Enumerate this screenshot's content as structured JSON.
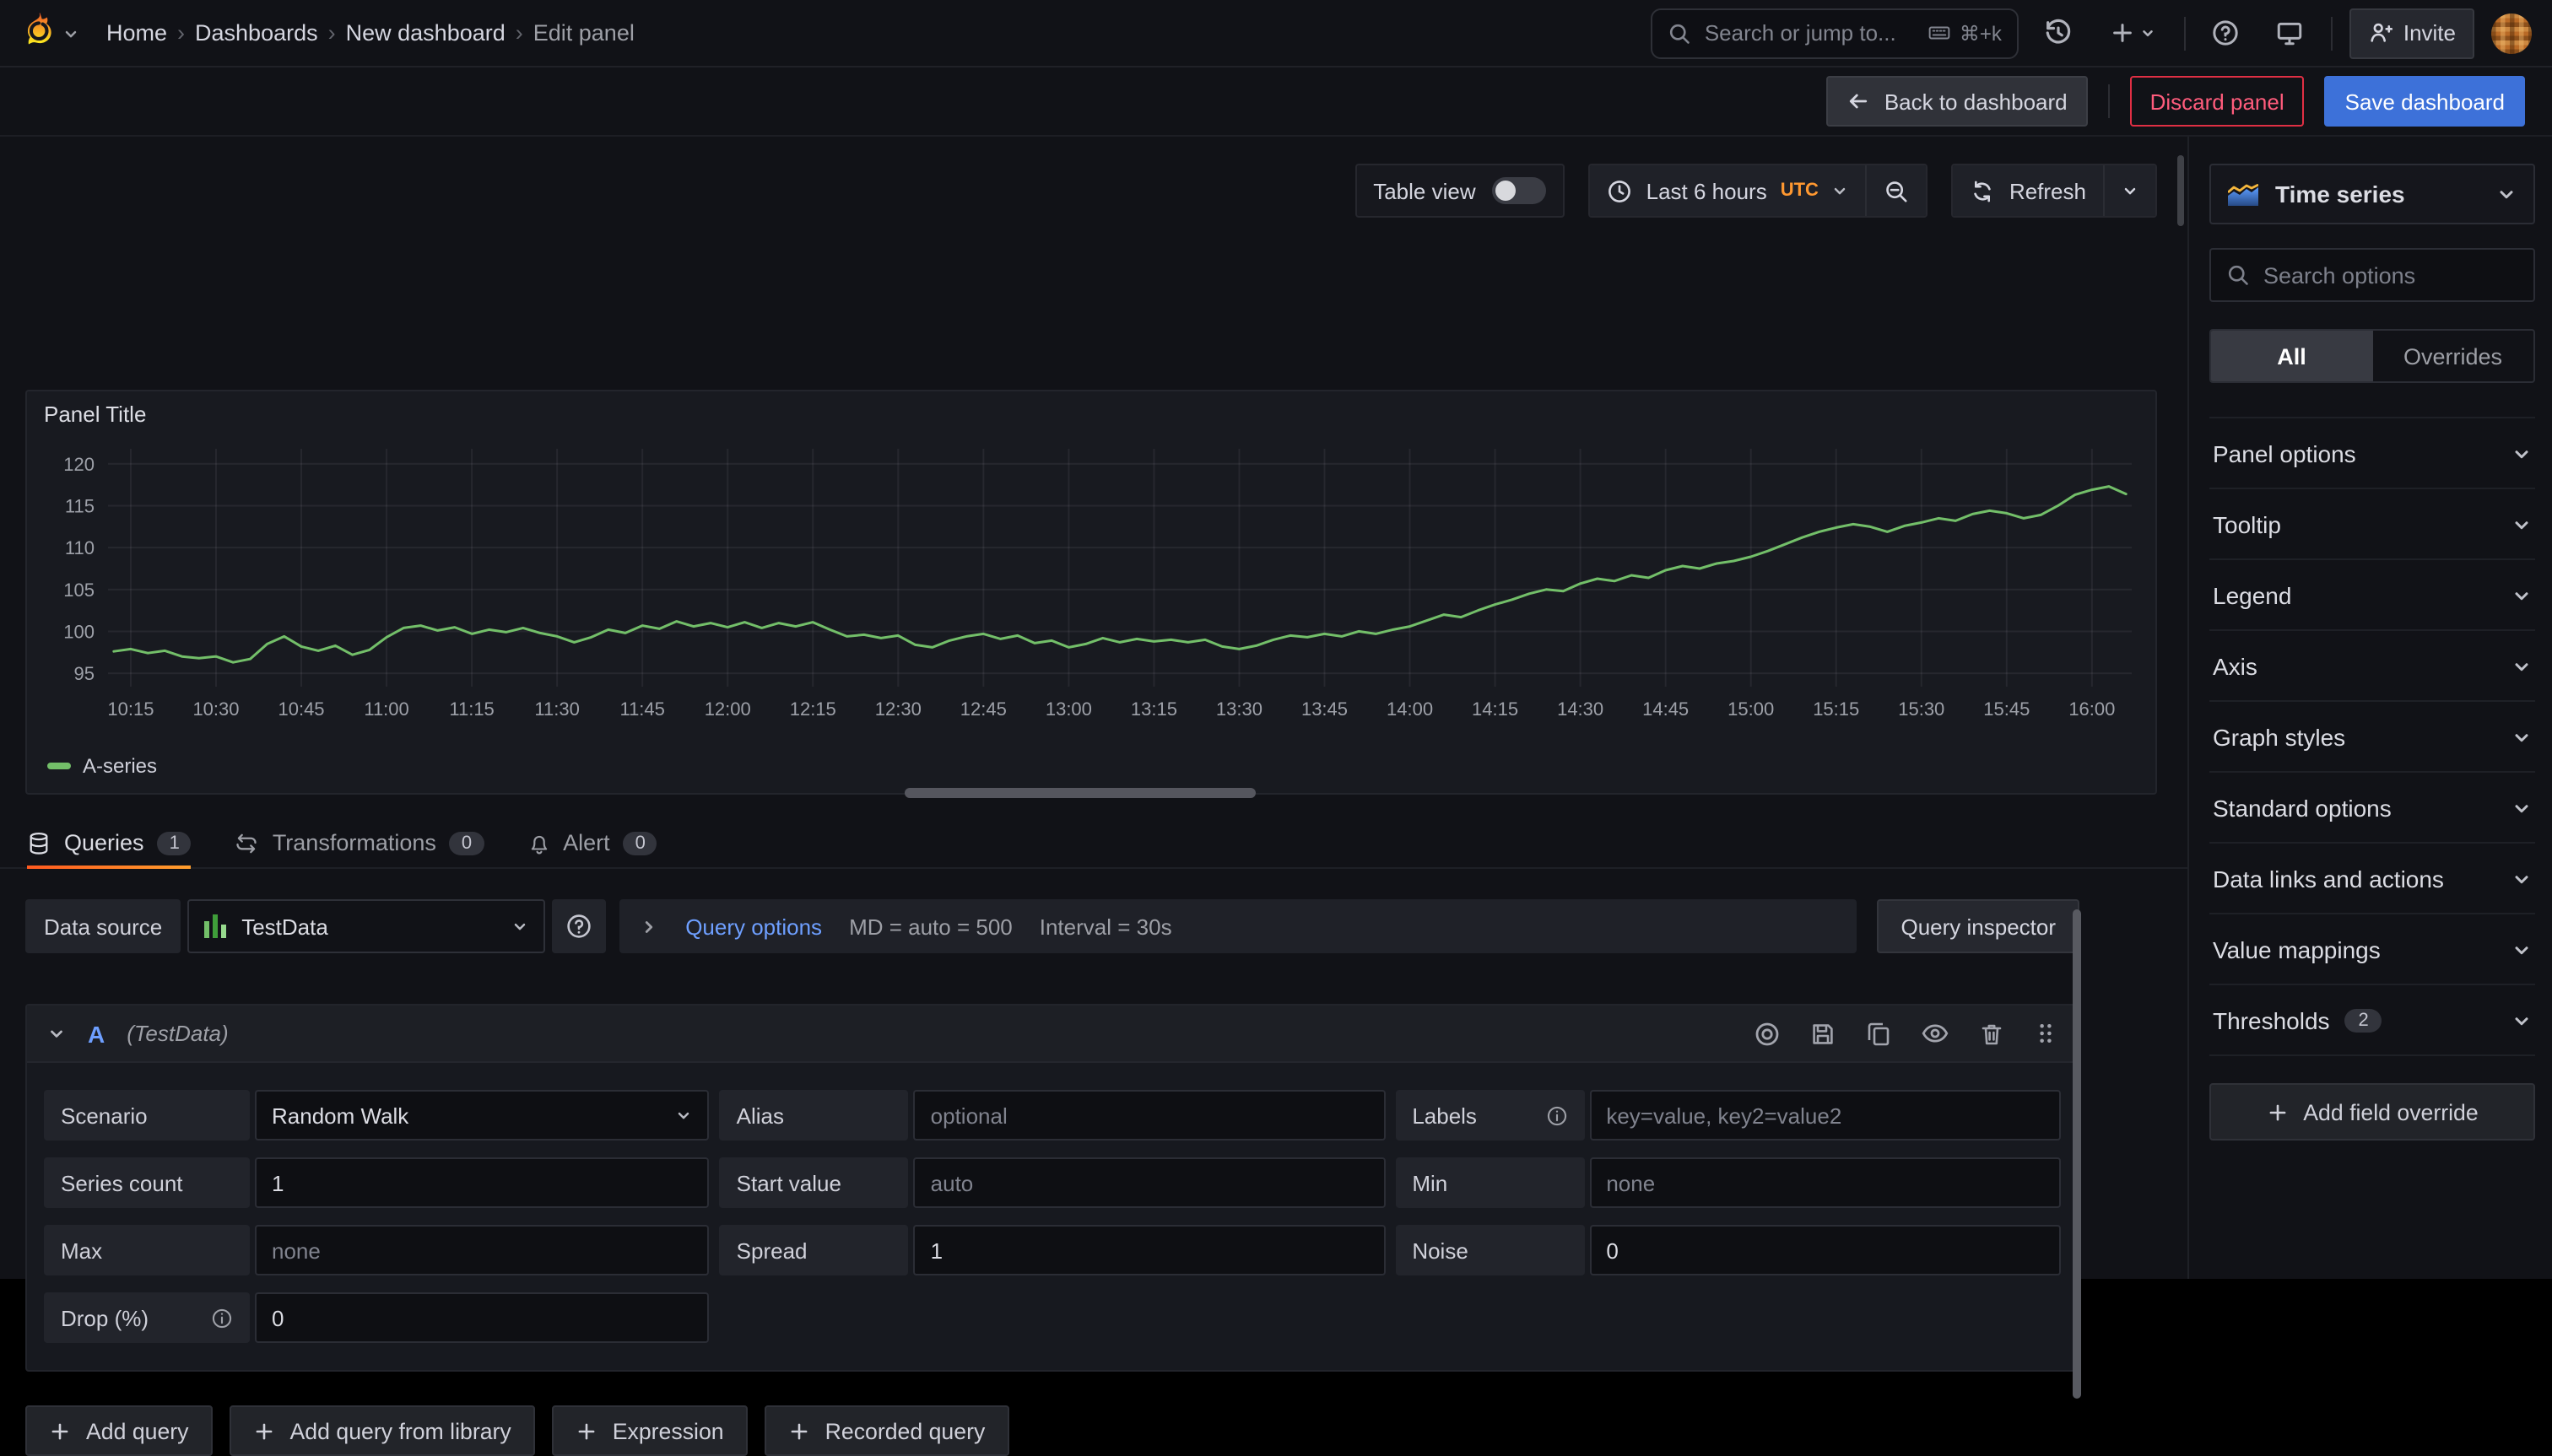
{
  "nav": {
    "breadcrumb": {
      "separator": "›",
      "items": [
        "Home",
        "Dashboards",
        "New dashboard",
        "Edit panel"
      ]
    },
    "search": {
      "placeholder": "Search or jump to...",
      "shortcut": "⌘+k"
    },
    "invite_label": "Invite"
  },
  "actions_bar": {
    "back": "Back to dashboard",
    "discard": "Discard panel",
    "save": "Save dashboard"
  },
  "toolbar": {
    "table_view_label": "Table view",
    "time_range": "Last 6 hours",
    "timezone": "UTC",
    "refresh_label": "Refresh"
  },
  "panel": {
    "title": "Panel Title",
    "legend": "A-series"
  },
  "chart_data": {
    "type": "line",
    "title": "Panel Title",
    "series": [
      {
        "name": "A-series",
        "color": "#73bf69"
      }
    ],
    "x_start_min": 612,
    "x_step_min": 3,
    "x_range": [
      611,
      967
    ],
    "ylim": [
      93.4,
      121.8
    ],
    "yticks": [
      95,
      100,
      105,
      110,
      115,
      120
    ],
    "xticks": [
      "10:15",
      "10:30",
      "10:45",
      "11:00",
      "11:15",
      "11:30",
      "11:45",
      "12:00",
      "12:15",
      "12:30",
      "12:45",
      "13:00",
      "13:15",
      "13:30",
      "13:45",
      "14:00",
      "14:15",
      "14:30",
      "14:45",
      "15:00",
      "15:15",
      "15:30",
      "15:45",
      "16:00"
    ],
    "values": [
      97.6,
      97.9,
      97.4,
      97.7,
      97.0,
      96.8,
      97.0,
      96.3,
      96.7,
      98.5,
      99.4,
      98.2,
      97.7,
      98.3,
      97.2,
      97.8,
      99.3,
      100.4,
      100.7,
      100.1,
      100.5,
      99.7,
      100.2,
      99.9,
      100.4,
      99.8,
      99.4,
      98.7,
      99.3,
      100.2,
      99.8,
      100.7,
      100.3,
      101.2,
      100.6,
      101.0,
      100.5,
      101.1,
      100.4,
      101.0,
      100.6,
      101.1,
      100.2,
      99.4,
      99.6,
      99.2,
      99.5,
      98.4,
      98.1,
      98.9,
      99.4,
      99.7,
      99.1,
      99.5,
      98.6,
      98.9,
      98.1,
      98.5,
      99.2,
      98.7,
      99.1,
      98.8,
      99.0,
      98.7,
      99.0,
      98.2,
      97.9,
      98.3,
      99.0,
      99.5,
      99.3,
      99.7,
      99.4,
      100.0,
      99.7,
      100.2,
      100.6,
      101.3,
      102.0,
      101.7,
      102.5,
      103.2,
      103.8,
      104.5,
      105.0,
      104.8,
      105.7,
      106.3,
      106.0,
      106.7,
      106.4,
      107.3,
      107.8,
      107.5,
      108.1,
      108.4,
      108.9,
      109.6,
      110.4,
      111.2,
      111.9,
      112.4,
      112.8,
      112.5,
      111.9,
      112.6,
      113.0,
      113.5,
      113.2,
      114.0,
      114.4,
      114.1,
      113.5,
      113.9,
      115.0,
      116.3,
      116.9,
      117.3,
      116.4
    ],
    "grid": true,
    "legend_position": "bottom-left"
  },
  "tabs": [
    {
      "label": "Queries",
      "count": "1"
    },
    {
      "label": "Transformations",
      "count": "0"
    },
    {
      "label": "Alert",
      "count": "0"
    }
  ],
  "query_toolbar": {
    "datasource_label": "Data source",
    "datasource_value": "TestData",
    "query_options_label": "Query options",
    "max_data_points": "MD = auto = 500",
    "interval": "Interval = 30s",
    "inspector_label": "Query inspector"
  },
  "query": {
    "ref_id": "A",
    "datasource_hint": "(TestData)",
    "fields": {
      "scenario": {
        "label": "Scenario",
        "value": "Random Walk"
      },
      "alias": {
        "label": "Alias",
        "placeholder": "optional"
      },
      "labels": {
        "label": "Labels",
        "placeholder": "key=value, key2=value2"
      },
      "series_count": {
        "label": "Series count",
        "value": "1"
      },
      "start_value": {
        "label": "Start value",
        "placeholder": "auto"
      },
      "min": {
        "label": "Min",
        "placeholder": "none"
      },
      "max": {
        "label": "Max",
        "placeholder": "none"
      },
      "spread": {
        "label": "Spread",
        "value": "1"
      },
      "noise": {
        "label": "Noise",
        "value": "0"
      },
      "drop": {
        "label": "Drop (%)",
        "value": "0"
      }
    }
  },
  "query_footer": {
    "add_query": "Add query",
    "add_from_library": "Add query from library",
    "expression": "Expression",
    "recorded_query": "Recorded query"
  },
  "options_pane": {
    "visualization": "Time series",
    "search_placeholder": "Search options",
    "segments": [
      {
        "label": "All",
        "active": true
      },
      {
        "label": "Overrides",
        "active": false
      }
    ],
    "sections": [
      {
        "slug": "panel-options",
        "label": "Panel options"
      },
      {
        "slug": "tooltip",
        "label": "Tooltip"
      },
      {
        "slug": "legend",
        "label": "Legend"
      },
      {
        "slug": "axis",
        "label": "Axis"
      },
      {
        "slug": "graph-styles",
        "label": "Graph styles"
      },
      {
        "slug": "standard-options",
        "label": "Standard options"
      },
      {
        "slug": "data-links-and-actions",
        "label": "Data links and actions"
      },
      {
        "slug": "value-mappings",
        "label": "Value mappings"
      },
      {
        "slug": "thresholds",
        "label": "Thresholds",
        "badge": "2"
      }
    ],
    "add_override": "Add field override"
  },
  "colors": {
    "accent_orange": "#ff9830",
    "link_blue": "#6e9fff",
    "save_blue": "#3d71d9",
    "danger_red": "#e02f44",
    "series_green": "#73bf69"
  }
}
